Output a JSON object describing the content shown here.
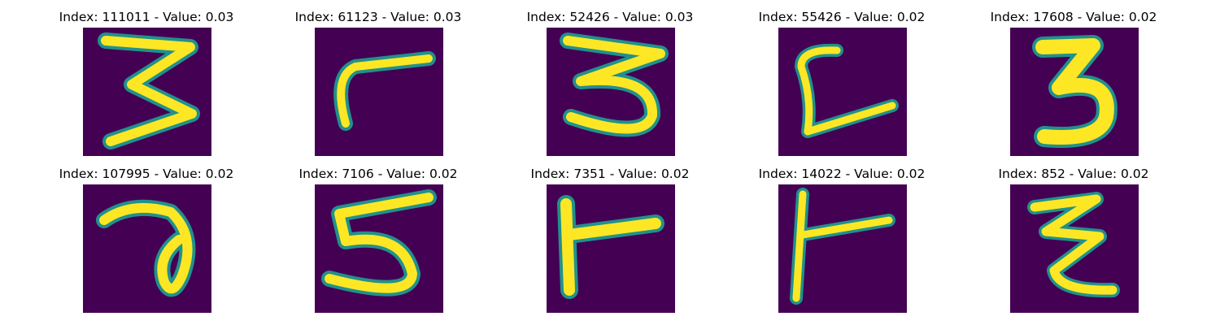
{
  "figure": {
    "colors": {
      "background": "#440154",
      "mid": "#21918c",
      "high": "#fde725"
    },
    "panels": [
      {
        "title": "Index: 111011 - Value: 0.03",
        "glyph": "3-tall"
      },
      {
        "title": "Index: 61123 - Value: 0.03",
        "glyph": "r-shape"
      },
      {
        "title": "Index: 52426 - Value: 0.03",
        "glyph": "3-wide"
      },
      {
        "title": "Index: 55426 - Value: 0.02",
        "glyph": "L-curve"
      },
      {
        "title": "Index: 17608 - Value: 0.02",
        "glyph": "3-bold"
      },
      {
        "title": "Index: 107995 - Value: 0.02",
        "glyph": "a-loop"
      },
      {
        "title": "Index: 7106 - Value: 0.02",
        "glyph": "5"
      },
      {
        "title": "Index: 7351 - Value: 0.02",
        "glyph": "r-corner"
      },
      {
        "title": "Index: 14022 - Value: 0.02",
        "glyph": "r-thin"
      },
      {
        "title": "Index: 852 - Value: 0.02",
        "glyph": "z-zigzag"
      }
    ]
  }
}
